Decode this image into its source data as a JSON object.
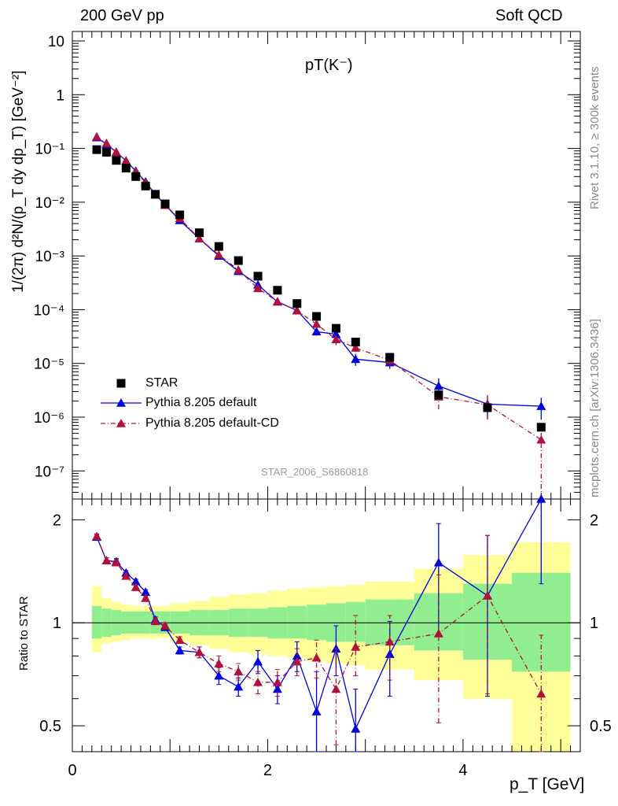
{
  "header": {
    "left": "200 GeV pp",
    "right": "Soft QCD"
  },
  "side_labels": {
    "rivet": "Rivet 3.1.10, ≥ 300k events",
    "mcplots": "mcplots.cern.ch [arXiv:1306.3436]"
  },
  "chart_data": [
    {
      "type": "scatter",
      "panel": "main",
      "title": "pT(K⁻)",
      "analysis_label": "STAR_2006_S6860818",
      "ylabel": "1/(2π) d²N/(p_T dy dp_T) [GeV⁻²]",
      "xlabel": "",
      "yscale": "log",
      "xlim": [
        0,
        5.2
      ],
      "ylim": [
        3e-08,
        15
      ],
      "yticks": [
        "10",
        "1",
        "10⁻¹",
        "10⁻²",
        "10⁻³",
        "10⁻⁴",
        "10⁻⁵",
        "10⁻⁶",
        "10⁻⁷"
      ],
      "legend_position": "lower-left",
      "x": [
        0.25,
        0.35,
        0.45,
        0.55,
        0.65,
        0.75,
        0.85,
        0.95,
        1.1,
        1.3,
        1.5,
        1.7,
        1.9,
        2.1,
        2.3,
        2.5,
        2.7,
        2.9,
        3.25,
        3.75,
        4.25,
        4.8
      ],
      "series": [
        {
          "name": "STAR",
          "style": "square",
          "color": "#000000",
          "values": [
            0.095,
            0.085,
            0.06,
            0.043,
            0.03,
            0.02,
            0.014,
            0.0093,
            0.0058,
            0.0027,
            0.0015,
            0.00082,
            0.00042,
            0.00023,
            0.00013,
            7.5e-05,
            4.5e-05,
            2.5e-05,
            1.3e-05,
            2.6e-06,
            1.5e-06,
            6.5e-07
          ]
        },
        {
          "name": "Pythia 8.205 default",
          "style": "solid-triangle",
          "color": "#0000dd",
          "values": [
            0.16,
            0.12,
            0.085,
            0.059,
            0.038,
            0.024,
            0.014,
            0.0089,
            0.0046,
            0.0021,
            0.001,
            0.00052,
            0.00029,
            0.00014,
            9.7e-05,
            3.9e-05,
            3.5e-05,
            1.2e-05,
            1.04e-05,
            3.8e-06,
            1.75e-06,
            1.6e-06
          ],
          "err_lo": [
            0.004,
            0.003,
            0.002,
            0.0015,
            0.001,
            0.0006,
            0.0004,
            0.0003,
            0.00012,
            6e-05,
            3.5e-05,
            2e-05,
            1.5e-05,
            1e-05,
            8e-06,
            6e-06,
            6e-06,
            3e-06,
            2.5e-06,
            1.5e-06,
            8e-07,
            7e-07
          ],
          "err_hi": [
            0.004,
            0.003,
            0.002,
            0.0015,
            0.001,
            0.0006,
            0.0004,
            0.0003,
            0.00012,
            6e-05,
            3.5e-05,
            2e-05,
            1.5e-05,
            1e-05,
            8e-06,
            6e-06,
            6e-06,
            3e-06,
            2.5e-06,
            1.5e-06,
            8e-07,
            7e-07
          ]
        },
        {
          "name": "Pythia 8.205 default-CD",
          "style": "dashdot-triangle",
          "color": "#b0103a",
          "values": [
            0.165,
            0.125,
            0.086,
            0.058,
            0.037,
            0.023,
            0.014,
            0.0088,
            0.005,
            0.0021,
            0.00105,
            0.00055,
            0.00025,
            0.000142,
            9.6e-05,
            5.4e-05,
            2.8e-05,
            1.95e-05,
            1.15e-05,
            2.4e-06,
            1.7e-06,
            3.8e-07
          ],
          "err_lo": [
            0.004,
            0.003,
            0.002,
            0.0015,
            0.001,
            0.0006,
            0.0004,
            0.0003,
            0.00012,
            6e-05,
            3.5e-05,
            2e-05,
            1.5e-05,
            1e-05,
            8e-06,
            6e-06,
            6e-06,
            3e-06,
            2.5e-06,
            1e-06,
            8e-07,
            3.5e-07
          ],
          "err_hi": [
            0.004,
            0.003,
            0.002,
            0.0015,
            0.001,
            0.0006,
            0.0004,
            0.0003,
            0.00012,
            6e-05,
            3.5e-05,
            2e-05,
            1.5e-05,
            1e-05,
            8e-06,
            6e-06,
            6e-06,
            3e-06,
            2.5e-06,
            1e-06,
            8e-07,
            3.5e-07
          ]
        }
      ]
    },
    {
      "type": "scatter",
      "panel": "ratio",
      "ylabel": "Ratio to STAR",
      "xlabel": "p_T [GeV]",
      "yscale": "log",
      "xlim": [
        0,
        5.2
      ],
      "ylim": [
        0.42,
        2.3
      ],
      "xticks": [
        "0",
        "2",
        "4"
      ],
      "yticks": [
        "2",
        "1",
        "0.5"
      ],
      "x": [
        0.25,
        0.35,
        0.45,
        0.55,
        0.65,
        0.75,
        0.85,
        0.95,
        1.1,
        1.3,
        1.5,
        1.7,
        1.9,
        2.1,
        2.3,
        2.5,
        2.7,
        2.9,
        3.25,
        3.75,
        4.25,
        4.8
      ],
      "bin_edges": [
        0.2,
        0.3,
        0.4,
        0.5,
        0.6,
        0.7,
        0.8,
        0.9,
        1.0,
        1.2,
        1.4,
        1.6,
        1.8,
        2.0,
        2.2,
        2.4,
        2.6,
        2.8,
        3.0,
        3.5,
        4.0,
        4.5,
        5.1
      ],
      "bands": {
        "inner_color": "#90ee90",
        "outer_color": "#ffff99",
        "inner_lo": [
          0.9,
          0.91,
          0.92,
          0.93,
          0.93,
          0.93,
          0.93,
          0.93,
          0.93,
          0.92,
          0.92,
          0.91,
          0.91,
          0.9,
          0.9,
          0.89,
          0.88,
          0.88,
          0.86,
          0.83,
          0.78,
          0.72
        ],
        "inner_hi": [
          1.12,
          1.1,
          1.09,
          1.08,
          1.08,
          1.08,
          1.08,
          1.08,
          1.08,
          1.09,
          1.09,
          1.1,
          1.1,
          1.11,
          1.12,
          1.13,
          1.14,
          1.15,
          1.17,
          1.22,
          1.3,
          1.4
        ],
        "outer_lo": [
          0.82,
          0.87,
          0.88,
          0.89,
          0.9,
          0.9,
          0.9,
          0.9,
          0.88,
          0.86,
          0.84,
          0.82,
          0.81,
          0.8,
          0.79,
          0.77,
          0.76,
          0.75,
          0.73,
          0.68,
          0.6,
          0.42
        ],
        "outer_hi": [
          1.28,
          1.18,
          1.15,
          1.13,
          1.12,
          1.12,
          1.12,
          1.12,
          1.14,
          1.16,
          1.19,
          1.21,
          1.22,
          1.24,
          1.26,
          1.27,
          1.28,
          1.29,
          1.32,
          1.44,
          1.58,
          1.72
        ]
      },
      "reference_line": 1,
      "series": [
        {
          "name": "Pythia 8.205 default",
          "color": "#0000dd",
          "style": "solid-triangle",
          "values": [
            1.78,
            1.52,
            1.51,
            1.4,
            1.32,
            1.23,
            1.02,
            0.97,
            0.83,
            0.82,
            0.7,
            0.65,
            0.77,
            0.64,
            0.8,
            0.55,
            0.84,
            0.49,
            0.81,
            1.5,
            1.2,
            2.3
          ],
          "err_lo": [
            0.03,
            0.03,
            0.03,
            0.02,
            0.02,
            0.02,
            0.02,
            0.02,
            0.02,
            0.03,
            0.04,
            0.04,
            0.06,
            0.06,
            0.08,
            0.17,
            0.14,
            0.15,
            0.2,
            0.58,
            0.59,
            1.0
          ],
          "err_hi": [
            0.03,
            0.03,
            0.03,
            0.02,
            0.02,
            0.02,
            0.02,
            0.02,
            0.02,
            0.03,
            0.04,
            0.04,
            0.06,
            0.06,
            0.08,
            0.17,
            0.14,
            0.15,
            0.2,
            0.45,
            0.6,
            0.3
          ]
        },
        {
          "name": "Pythia 8.205 default-CD",
          "color": "#b0103a",
          "style": "dashdot-triangle",
          "values": [
            1.79,
            1.52,
            1.5,
            1.37,
            1.27,
            1.18,
            1.01,
            0.98,
            0.89,
            0.82,
            0.76,
            0.72,
            0.67,
            0.67,
            0.77,
            0.79,
            0.64,
            0.85,
            0.88,
            0.93,
            1.2,
            0.62
          ],
          "err_lo": [
            0.03,
            0.03,
            0.03,
            0.02,
            0.02,
            0.02,
            0.02,
            0.02,
            0.02,
            0.03,
            0.04,
            0.04,
            0.05,
            0.06,
            0.07,
            0.1,
            0.2,
            0.15,
            0.2,
            0.42,
            0.58,
            0.3
          ],
          "err_hi": [
            0.03,
            0.03,
            0.03,
            0.02,
            0.02,
            0.02,
            0.02,
            0.02,
            0.02,
            0.03,
            0.04,
            0.04,
            0.05,
            0.06,
            0.07,
            0.1,
            0.2,
            0.2,
            0.17,
            0.45,
            0.6,
            0.3
          ]
        }
      ]
    }
  ]
}
